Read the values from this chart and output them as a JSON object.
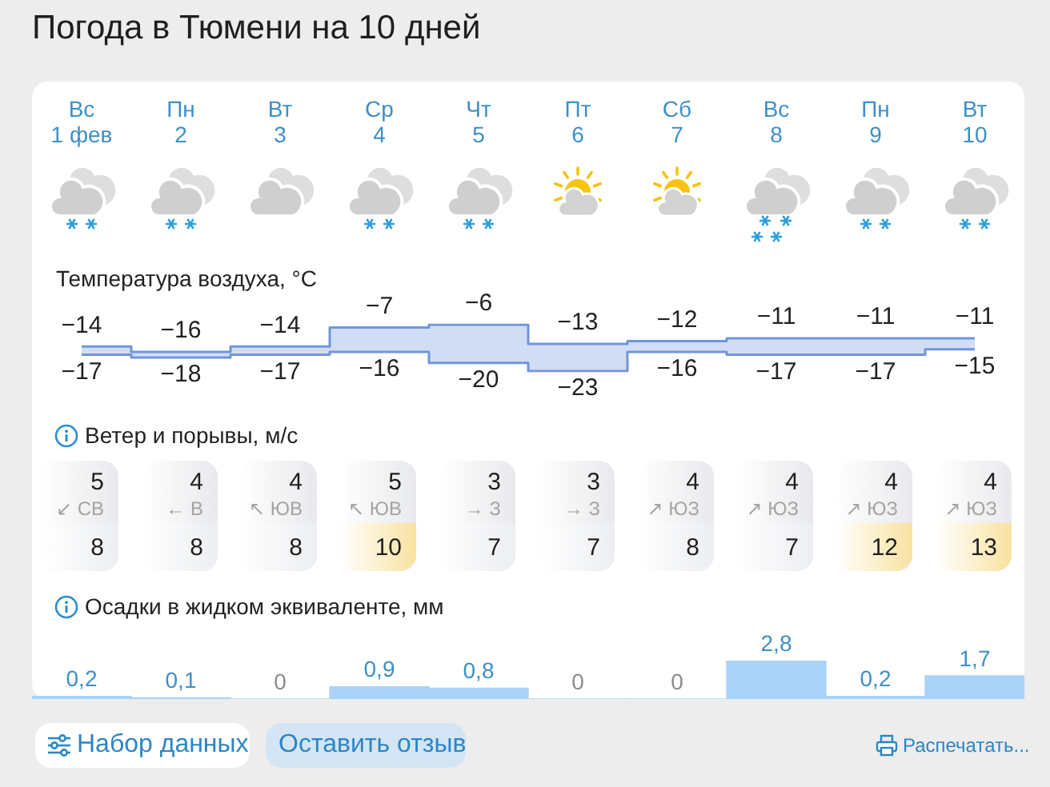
{
  "chart_data": [
    {
      "type": "step",
      "title": "Погода в Тюмени на 10 дней",
      "subtitle": "Температура воздуха, °C",
      "categories": [
        "Вс\n1 фев",
        "Пн\n2",
        "Вт\n3",
        "Ср\n4",
        "Чт\n5",
        "Пт\n6",
        "Сб\n7",
        "Вс\n8",
        "Пн\n9",
        "Вт\n10"
      ],
      "tick_labels": "x",
      "series": [
        {
          "color": "#6f95dc",
          "values": [
            -14,
            -16,
            -14,
            -7,
            -6,
            -13,
            -12,
            -11,
            -11,
            -11
          ],
          "value_labels": [
            "−14",
            "−16",
            "−14",
            "−7",
            "−6",
            "−13",
            "−12",
            "−11",
            "−11",
            "−11"
          ]
        },
        {
          "color": "#6f95dc",
          "values": [
            -17,
            -18,
            -17,
            -16,
            -20,
            -23,
            -16,
            -17,
            -17,
            -15
          ],
          "value_labels": [
            "−17",
            "−18",
            "−17",
            "−16",
            "−20",
            "−23",
            "−16",
            "−17",
            "−17",
            "−15"
          ]
        }
      ]
    },
    {
      "type": "other",
      "title": "Ветер и порывы, м/с",
      "annotations": [
        "5",
        "↙ СВ",
        "8",
        "4",
        "← В",
        "8",
        "4",
        "↖ ЮВ",
        "8",
        "5",
        "↖ ЮВ",
        "10",
        "3",
        "→ З",
        "7",
        "3",
        "→ З",
        "7",
        "4",
        "↗ ЮЗ",
        "8",
        "4",
        "↗ ЮЗ",
        "7",
        "4",
        "↗ ЮЗ",
        "12",
        "4",
        "↗ ЮЗ",
        "13"
      ]
    },
    {
      "type": "bar",
      "title": "Осадки в жидком эквиваленте, мм",
      "categories": [
        null,
        null,
        null,
        null,
        null,
        null,
        null,
        null,
        null,
        null
      ],
      "color": "#a9d3f7",
      "values": [
        0.2,
        0.1,
        0,
        0.9,
        0.8,
        0,
        0,
        2.8,
        0.2,
        1.7
      ],
      "value_labels": [
        "0,2",
        "0,1",
        "0",
        "0,9",
        "0,8",
        "0",
        "0",
        "2,8",
        "0,2",
        "1,7"
      ]
    },
    {
      "type": "other",
      "annotations": [
        "Набор данных",
        "Оставить отзыв",
        "Распечатать..."
      ]
    }
  ]
}
